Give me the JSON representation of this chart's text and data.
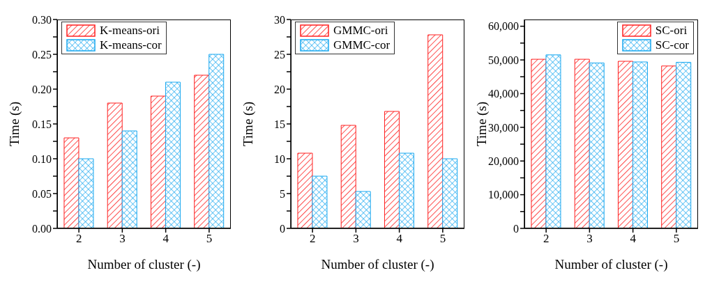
{
  "chart_data": [
    {
      "type": "bar",
      "xlabel": "Number of cluster (-)",
      "ylabel": "Time (s)",
      "categories": [
        "2",
        "3",
        "4",
        "5"
      ],
      "legend": "top left",
      "grid": false,
      "ylim": [
        0,
        0.3
      ],
      "yticks": [
        {
          "value": 0,
          "label": "0.00"
        },
        {
          "value": 0.025,
          "label": null
        },
        {
          "value": 0.05,
          "label": "0.05"
        },
        {
          "value": 0.075,
          "label": null
        },
        {
          "value": 0.1,
          "label": "0.10"
        },
        {
          "value": 0.125,
          "label": null
        },
        {
          "value": 0.15,
          "label": "0.15"
        },
        {
          "value": 0.175,
          "label": null
        },
        {
          "value": 0.2,
          "label": "0.20"
        },
        {
          "value": 0.225,
          "label": null
        },
        {
          "value": 0.25,
          "label": "0.25"
        },
        {
          "value": 0.275,
          "label": null
        },
        {
          "value": 0.3,
          "label": "0.30"
        }
      ],
      "series": [
        {
          "name": "K-means-ori",
          "color": "#ff2020",
          "values": [
            0.13,
            0.18,
            0.19,
            0.22
          ]
        },
        {
          "name": "K-means-cor",
          "color": "#18a8f0",
          "values": [
            0.1,
            0.14,
            0.21,
            0.25
          ]
        }
      ]
    },
    {
      "type": "bar",
      "xlabel": "Number of cluster (-)",
      "ylabel": "Time (s)",
      "categories": [
        "2",
        "3",
        "4",
        "5"
      ],
      "legend": "top left",
      "grid": false,
      "ylim": [
        0,
        30
      ],
      "yticks": [
        0,
        {
          "value": 2.5,
          "label": null
        },
        5,
        {
          "value": 7.5,
          "label": null
        },
        10,
        {
          "value": 12.5,
          "label": null
        },
        15,
        {
          "value": 17.5,
          "label": null
        },
        20,
        {
          "value": 22.5,
          "label": null
        },
        25,
        {
          "value": 27.5,
          "label": null
        },
        30
      ],
      "series": [
        {
          "name": "GMMC-ori",
          "color": "#ff2020",
          "values": [
            10.8,
            14.8,
            16.8,
            27.8
          ]
        },
        {
          "name": "GMMC-cor",
          "color": "#18a8f0",
          "values": [
            7.5,
            5.3,
            10.8,
            10.0
          ]
        }
      ]
    },
    {
      "type": "bar",
      "xlabel": "Number of cluster (-)",
      "ylabel": "Time (s)",
      "categories": [
        "2",
        "3",
        "4",
        "5"
      ],
      "legend": "top right",
      "grid": false,
      "ylim": [
        0,
        62000
      ],
      "yticks": [
        {
          "value": 0,
          "label": "0"
        },
        {
          "value": 5000,
          "label": null
        },
        {
          "value": 10000,
          "label": "10,000"
        },
        {
          "value": 15000,
          "label": null
        },
        {
          "value": 20000,
          "label": "20,000"
        },
        {
          "value": 25000,
          "label": null
        },
        {
          "value": 30000,
          "label": "30,000"
        },
        {
          "value": 35000,
          "label": null
        },
        {
          "value": 40000,
          "label": "40,000"
        },
        {
          "value": 45000,
          "label": null
        },
        {
          "value": 50000,
          "label": "50,000"
        },
        {
          "value": 55000,
          "label": null
        },
        {
          "value": 60000,
          "label": "60,000"
        }
      ],
      "series": [
        {
          "name": "SC-ori",
          "color": "#ff2020",
          "values": [
            50200,
            50200,
            49600,
            48200
          ]
        },
        {
          "name": "SC-cor",
          "color": "#18a8f0",
          "values": [
            51500,
            49100,
            49400,
            49300
          ]
        }
      ]
    }
  ]
}
